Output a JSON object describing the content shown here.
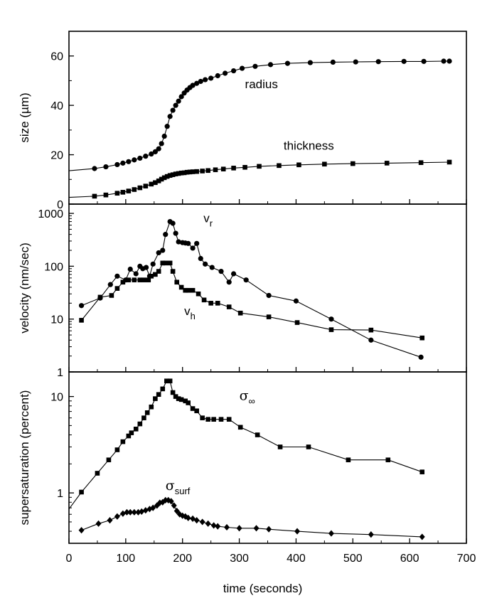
{
  "chart_data": {
    "type": "line",
    "layout": "three vertically stacked panels sharing the x axis",
    "xlabel": "time (seconds)",
    "xlim": [
      0,
      700
    ],
    "xticks": [
      0,
      100,
      200,
      300,
      400,
      500,
      600,
      700
    ],
    "panels": [
      {
        "id": "size",
        "ylabel": "size (µm)",
        "yscale": "linear",
        "ylim": [
          0,
          70
        ],
        "yticks": [
          0,
          20,
          40,
          60
        ],
        "series": [
          {
            "name": "radius",
            "marker": "circle",
            "label": "radius",
            "x": [
              0,
              45,
              65,
              85,
              95,
              105,
              115,
              125,
              135,
              145,
              152,
              158,
              163,
              168,
              173,
              178,
              183,
              188,
              193,
              198,
              203,
              208,
              213,
              218,
              225,
              232,
              240,
              250,
              262,
              275,
              290,
              305,
              328,
              355,
              385,
              425,
              465,
              505,
              545,
              590,
              625,
              660,
              670
            ],
            "y": [
              13.5,
              14.4,
              15.1,
              16.0,
              16.6,
              17.2,
              17.9,
              18.6,
              19.4,
              20.3,
              21.2,
              22.4,
              24.5,
              27.5,
              31.5,
              35.5,
              38.0,
              40.0,
              41.7,
              43.5,
              45.0,
              46.2,
              47.2,
              48.1,
              48.9,
              49.7,
              50.4,
              51.0,
              52.0,
              53.0,
              54.0,
              55.0,
              55.8,
              56.5,
              57.0,
              57.3,
              57.5,
              57.6,
              57.7,
              57.8,
              57.8,
              57.9,
              57.9
            ]
          },
          {
            "name": "thickness",
            "marker": "square",
            "label": "thickness",
            "x": [
              0,
              45,
              65,
              85,
              95,
              105,
              115,
              125,
              135,
              145,
              152,
              158,
              163,
              168,
              173,
              178,
              183,
              188,
              193,
              198,
              203,
              208,
              213,
              218,
              225,
              235,
              245,
              258,
              272,
              290,
              310,
              335,
              370,
              405,
              450,
              500,
              560,
              620,
              670
            ],
            "y": [
              2.7,
              3.2,
              3.7,
              4.4,
              4.8,
              5.3,
              5.9,
              6.6,
              7.3,
              8.1,
              8.7,
              9.4,
              10.1,
              10.7,
              11.2,
              11.6,
              11.9,
              12.2,
              12.4,
              12.6,
              12.7,
              12.9,
              13.0,
              13.1,
              13.2,
              13.4,
              13.6,
              13.9,
              14.2,
              14.6,
              14.9,
              15.3,
              15.6,
              15.9,
              16.2,
              16.4,
              16.6,
              16.8,
              17.0
            ]
          }
        ],
        "annotations": [
          {
            "text": "radius",
            "at": [
              310,
              47
            ]
          },
          {
            "text": "thickness",
            "at": [
              378,
              22
            ]
          }
        ]
      },
      {
        "id": "velocity",
        "ylabel": "velocity (nm/sec)",
        "yscale": "log",
        "ylim": [
          1,
          1500
        ],
        "yticks": [
          1,
          10,
          100,
          1000
        ],
        "ytick_labels": [
          "1",
          "10",
          "100",
          "1000"
        ],
        "series": [
          {
            "name": "v_r",
            "marker": "circle",
            "label": "v",
            "label_subscript": "r",
            "x": [
              22,
              55,
              73,
              85,
              100,
              108,
              118,
              125,
              130,
              136,
              142,
              148,
              158,
              165,
              170,
              178,
              183,
              188,
              193,
              200,
              205,
              210,
              218,
              225,
              232,
              240,
              252,
              268,
              282,
              290,
              312,
              352,
              400,
              462,
              532,
              620
            ],
            "y": [
              18,
              25,
              45,
              65,
              55,
              88,
              72,
              100,
              90,
              95,
              65,
              110,
              180,
              200,
              400,
              700,
              650,
              420,
              290,
              280,
              275,
              270,
              220,
              270,
              140,
              110,
              95,
              80,
              50,
              72,
              55,
              28,
              22,
              10,
              4,
              1.9
            ]
          },
          {
            "name": "v_h",
            "marker": "square",
            "label": "v",
            "label_subscript": "h",
            "x": [
              22,
              55,
              75,
              85,
              95,
              105,
              115,
              125,
              132,
              140,
              145,
              152,
              158,
              165,
              170,
              178,
              183,
              190,
              198,
              205,
              210,
              218,
              228,
              238,
              250,
              262,
              282,
              302,
              352,
              402,
              462,
              532,
              622
            ],
            "y": [
              9.5,
              26,
              28,
              38,
              50,
              55,
              55,
              55,
              55,
              55,
              65,
              70,
              80,
              115,
              115,
              115,
              80,
              50,
              40,
              35,
              35,
              35,
              30,
              23,
              20,
              20,
              17,
              13,
              11,
              8.6,
              6.3,
              6.2,
              4.4
            ]
          }
        ],
        "annotations": [
          {
            "text": "v",
            "subscript": "r",
            "at": [
              237,
              680
            ]
          },
          {
            "text": "v",
            "subscript": "h",
            "at": [
              203,
              12
            ]
          }
        ]
      },
      {
        "id": "supersaturation",
        "ylabel": "supersaturation (percent)",
        "yscale": "log",
        "ylim": [
          0.3,
          18
        ],
        "yticks": [
          1,
          10
        ],
        "ytick_labels": [
          "1",
          "10"
        ],
        "series": [
          {
            "name": "sigma_inf",
            "marker": "square",
            "label": "σ",
            "label_subscript": "∞",
            "x": [
              0,
              22,
              50,
              70,
              85,
              95,
              105,
              110,
              118,
              125,
              132,
              138,
              145,
              152,
              158,
              165,
              172,
              178,
              183,
              188,
              193,
              198,
              205,
              210,
              218,
              225,
              235,
              245,
              255,
              268,
              282,
              302,
              332,
              372,
              422,
              492,
              562,
              622
            ],
            "y": [
              0.68,
              1.02,
              1.6,
              2.2,
              2.8,
              3.4,
              3.9,
              4.2,
              4.6,
              5.2,
              6.0,
              6.8,
              7.8,
              9.5,
              10.5,
              12,
              14.5,
              14.5,
              11,
              10.0,
              9.5,
              9.3,
              9.0,
              8.6,
              7.5,
              7.1,
              6.0,
              5.8,
              5.8,
              5.8,
              5.8,
              4.8,
              4.0,
              3.0,
              3.0,
              2.2,
              2.2,
              1.65
            ]
          },
          {
            "name": "sigma_surf",
            "marker": "diamond",
            "label": "σ",
            "label_subscript": "surf",
            "x": [
              22,
              52,
              72,
              85,
              95,
              102,
              108,
              115,
              122,
              128,
              135,
              142,
              148,
              155,
              160,
              165,
              170,
              175,
              180,
              185,
              190,
              195,
              200,
              205,
              210,
              218,
              225,
              235,
              245,
              255,
              262,
              278,
              300,
              330,
              352,
              402,
              462,
              532,
              622
            ],
            "y": [
              0.41,
              0.48,
              0.52,
              0.57,
              0.61,
              0.63,
              0.63,
              0.63,
              0.63,
              0.64,
              0.66,
              0.68,
              0.7,
              0.74,
              0.79,
              0.8,
              0.84,
              0.84,
              0.82,
              0.74,
              0.65,
              0.6,
              0.58,
              0.57,
              0.55,
              0.54,
              0.52,
              0.5,
              0.48,
              0.46,
              0.45,
              0.44,
              0.43,
              0.43,
              0.42,
              0.4,
              0.38,
              0.37,
              0.35
            ]
          }
        ],
        "annotations": [
          {
            "text": "σ",
            "subscript": "∞",
            "at": [
              300,
              9.2
            ]
          },
          {
            "text": "σ",
            "subscript": "surf",
            "at": [
              170,
              1.07
            ]
          }
        ]
      }
    ]
  }
}
